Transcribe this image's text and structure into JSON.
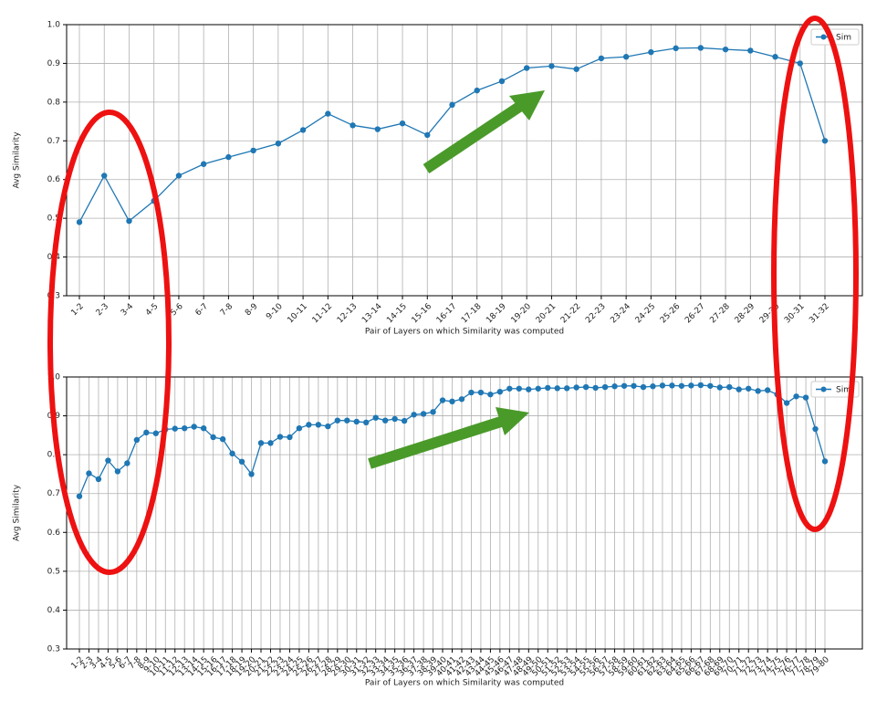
{
  "chart_data": [
    {
      "type": "line",
      "xlabel": "Pair of Layers on which Similarity was computed",
      "ylabel": "Avg Similarity",
      "categories": [
        "1-2",
        "2-3",
        "3-4",
        "4-5",
        "5-6",
        "6-7",
        "7-8",
        "8-9",
        "9-10",
        "10-11",
        "11-12",
        "12-13",
        "13-14",
        "14-15",
        "15-16",
        "16-17",
        "17-18",
        "18-19",
        "19-20",
        "20-21",
        "21-22",
        "22-23",
        "23-24",
        "24-25",
        "25-26",
        "26-27",
        "27-28",
        "28-29",
        "29-30",
        "30-31",
        "31-32"
      ],
      "series": [
        {
          "name": "Sim",
          "color": "#1f77b4",
          "values": [
            0.49,
            0.61,
            0.493,
            0.545,
            0.61,
            0.64,
            0.658,
            0.675,
            0.693,
            0.728,
            0.77,
            0.74,
            0.73,
            0.745,
            0.715,
            0.793,
            0.83,
            0.854,
            0.888,
            0.893,
            0.885,
            0.913,
            0.917,
            0.929,
            0.939,
            0.94,
            0.936,
            0.933,
            0.917,
            0.9,
            0.7
          ]
        }
      ],
      "ylim": [
        0.3,
        1.0
      ],
      "yticks": [
        0.3,
        0.4,
        0.5,
        0.6,
        0.7,
        0.8,
        0.9,
        {
          "value": 1,
          "label": "1.0"
        }
      ],
      "grid": true,
      "legend": "upper right"
    },
    {
      "type": "line",
      "xlabel": "Pair of Layers on which Similarity was computed",
      "ylabel": "Avg Similarity",
      "categories": [
        "1-2",
        "2-3",
        "3-4",
        "4-5",
        "5-6",
        "6-7",
        "7-8",
        "8-9",
        "9-10",
        "10-11",
        "11-12",
        "12-13",
        "13-14",
        "14-15",
        "15-16",
        "16-17",
        "17-18",
        "18-19",
        "19-20",
        "20-21",
        "21-22",
        "22-23",
        "23-24",
        "24-25",
        "25-26",
        "26-27",
        "27-28",
        "28-29",
        "29-30",
        "30-31",
        "31-32",
        "32-33",
        "33-34",
        "34-35",
        "35-36",
        "36-37",
        "37-38",
        "38-39",
        "39-40",
        "40-41",
        "41-42",
        "42-43",
        "43-44",
        "44-45",
        "45-46",
        "46-47",
        "47-48",
        "48-49",
        "49-50",
        "50-51",
        "51-52",
        "52-53",
        "53-54",
        "54-55",
        "55-56",
        "56-57",
        "57-58",
        "58-59",
        "59-60",
        "60-61",
        "61-62",
        "62-63",
        "63-64",
        "64-65",
        "65-66",
        "66-67",
        "67-68",
        "68-69",
        "69-70",
        "70-71",
        "71-72",
        "72-73",
        "73-74",
        "74-75",
        "75-76",
        "76-77",
        "77-78",
        "78-79",
        "79-80"
      ],
      "series": [
        {
          "name": "Sim",
          "color": "#1f77b4",
          "values": [
            0.693,
            0.752,
            0.737,
            0.785,
            0.757,
            0.778,
            0.838,
            0.857,
            0.855,
            0.865,
            0.867,
            0.868,
            0.872,
            0.868,
            0.845,
            0.84,
            0.803,
            0.782,
            0.75,
            0.83,
            0.83,
            0.846,
            0.845,
            0.868,
            0.877,
            0.877,
            0.873,
            0.888,
            0.888,
            0.885,
            0.883,
            0.895,
            0.888,
            0.892,
            0.887,
            0.903,
            0.905,
            0.91,
            0.94,
            0.937,
            0.943,
            0.96,
            0.96,
            0.955,
            0.962,
            0.97,
            0.97,
            0.968,
            0.97,
            0.972,
            0.971,
            0.971,
            0.973,
            0.974,
            0.972,
            0.974,
            0.976,
            0.977,
            0.977,
            0.974,
            0.976,
            0.978,
            0.978,
            0.977,
            0.978,
            0.979,
            0.977,
            0.973,
            0.974,
            0.968,
            0.97,
            0.964,
            0.966,
            0.955,
            0.933,
            0.95,
            0.947,
            0.866,
            0.783
          ]
        }
      ],
      "ylim": [
        0.3,
        1.0
      ],
      "yticks": [
        0.3,
        0.4,
        0.5,
        0.6,
        0.7,
        0.8,
        0.9,
        {
          "value": 1,
          "label": "1.0"
        }
      ],
      "grid": true,
      "legend": "upper right"
    }
  ]
}
